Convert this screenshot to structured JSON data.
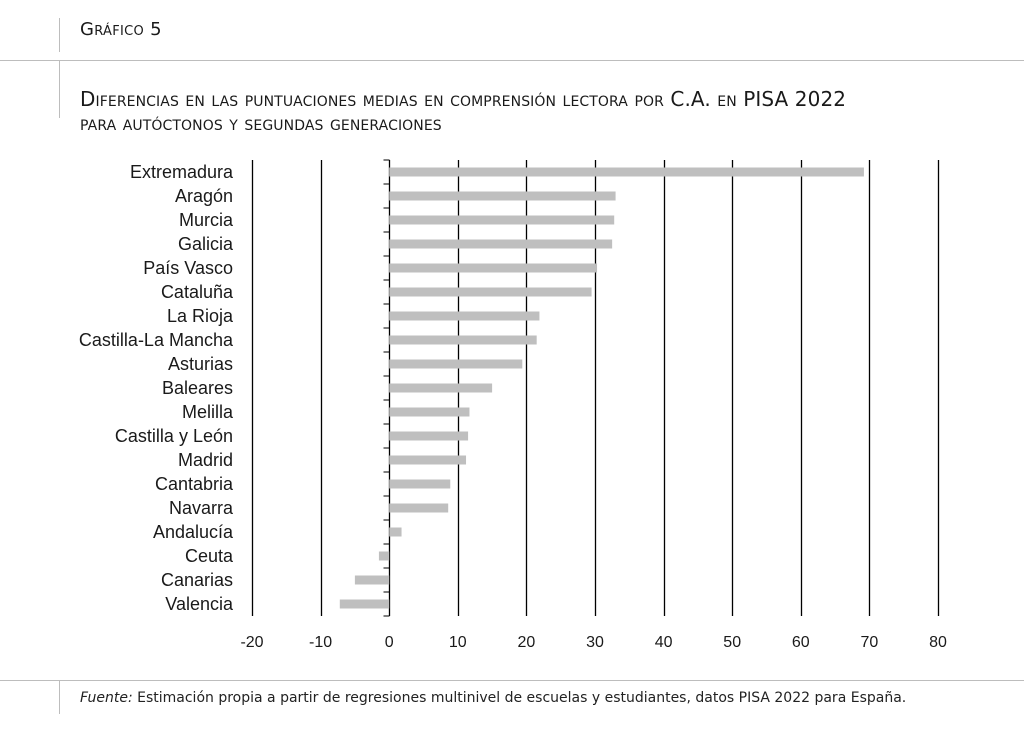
{
  "header": {
    "figure_label": "Gráfico 5",
    "title_line1": "Diferencias en las puntuaciones medias en comprensión lectora por C.A. en PISA 2022",
    "title_line2": "para autóctonos y segundas generaciones"
  },
  "footer": {
    "source_label": "Fuente:",
    "source_text": " Estimación propia a partir de regresiones multinivel de escuelas y estudiantes, datos PISA 2022 para España."
  },
  "colors": {
    "bar": "#bfbfbf",
    "grid": "#000000",
    "text": "#1a1a1a"
  },
  "chart_data": {
    "type": "bar",
    "orientation": "horizontal",
    "title": "Diferencias en las puntuaciones medias en comprensión lectora por C.A. en PISA 2022 para autóctonos y segundas generaciones",
    "xlabel": "",
    "ylabel": "",
    "xlim": [
      -20,
      80
    ],
    "xticks": [
      -20,
      -10,
      0,
      10,
      20,
      30,
      40,
      50,
      60,
      70,
      80
    ],
    "grid": true,
    "categories": [
      "Extremadura",
      "Aragón",
      "Murcia",
      "Galicia",
      "País Vasco",
      "Cataluña",
      "La Rioja",
      "Castilla-La Mancha",
      "Asturias",
      "Baleares",
      "Melilla",
      "Castilla y León",
      "Madrid",
      "Cantabria",
      "Navarra",
      "Andalucía",
      "Ceuta",
      "Canarias",
      "Valencia"
    ],
    "values": [
      69.2,
      33.0,
      32.8,
      32.5,
      30.3,
      29.5,
      21.9,
      21.5,
      19.4,
      15.0,
      11.7,
      11.5,
      11.2,
      8.9,
      8.6,
      1.8,
      -1.5,
      -5.0,
      -7.2
    ]
  }
}
